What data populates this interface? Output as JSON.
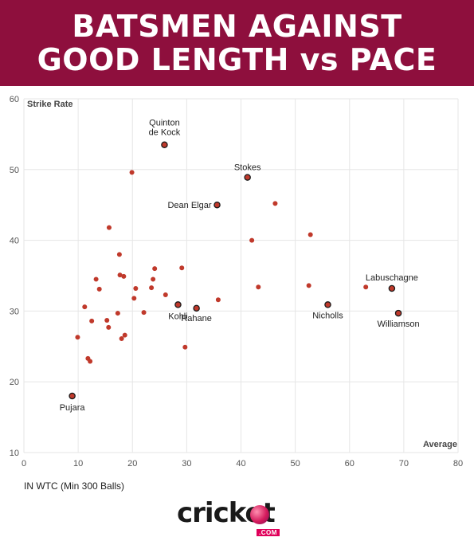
{
  "header": {
    "title_line1": "BATSMEN AGAINST",
    "title_line2": "GOOD LENGTH vs PACE"
  },
  "footnote": "IN WTC (Min 300 Balls)",
  "logo": {
    "word": "cricket",
    "dotcom": ".COM"
  },
  "colors": {
    "banner": "#8e0f3d",
    "point": "#c0392b",
    "point_highlight_stroke": "#1a1a1a",
    "grid": "#e6e6e6"
  },
  "chart_data": {
    "type": "scatter",
    "xlabel": "Average",
    "ylabel": "Strike Rate",
    "xlim": [
      0,
      80
    ],
    "ylim": [
      10,
      60
    ],
    "xticks": [
      0,
      10,
      20,
      30,
      40,
      50,
      60,
      70,
      80
    ],
    "yticks": [
      10,
      20,
      30,
      40,
      50,
      60
    ],
    "grid": true,
    "points": [
      {
        "x": 8.9,
        "y": 18.0,
        "label": "Pujara",
        "highlight": true
      },
      {
        "x": 25.9,
        "y": 53.5,
        "label": "Quinton de Kock",
        "highlight": true
      },
      {
        "x": 41.2,
        "y": 48.9,
        "label": "Stokes",
        "highlight": true
      },
      {
        "x": 35.6,
        "y": 45.0,
        "label": "Dean Elgar",
        "highlight": true
      },
      {
        "x": 28.4,
        "y": 30.9,
        "label": "Kohli",
        "highlight": true
      },
      {
        "x": 31.8,
        "y": 30.4,
        "label": "Rahane",
        "highlight": true
      },
      {
        "x": 56.0,
        "y": 30.9,
        "label": "Nicholls",
        "highlight": true
      },
      {
        "x": 67.8,
        "y": 33.2,
        "label": "Labuschagne",
        "highlight": true
      },
      {
        "x": 69.0,
        "y": 29.7,
        "label": "Williamson",
        "highlight": true
      },
      {
        "x": 19.9,
        "y": 49.6
      },
      {
        "x": 15.7,
        "y": 41.8
      },
      {
        "x": 17.6,
        "y": 38.0
      },
      {
        "x": 24.1,
        "y": 36.0
      },
      {
        "x": 29.1,
        "y": 36.1
      },
      {
        "x": 13.3,
        "y": 34.5
      },
      {
        "x": 17.7,
        "y": 35.1
      },
      {
        "x": 18.4,
        "y": 34.9
      },
      {
        "x": 23.8,
        "y": 34.5
      },
      {
        "x": 13.9,
        "y": 33.1
      },
      {
        "x": 20.6,
        "y": 33.2
      },
      {
        "x": 23.5,
        "y": 33.3
      },
      {
        "x": 26.1,
        "y": 32.3
      },
      {
        "x": 20.3,
        "y": 31.8
      },
      {
        "x": 11.2,
        "y": 30.6
      },
      {
        "x": 17.3,
        "y": 29.7
      },
      {
        "x": 22.1,
        "y": 29.8
      },
      {
        "x": 12.5,
        "y": 28.6
      },
      {
        "x": 15.3,
        "y": 28.7
      },
      {
        "x": 15.6,
        "y": 27.7
      },
      {
        "x": 18.6,
        "y": 26.6
      },
      {
        "x": 18.0,
        "y": 26.1
      },
      {
        "x": 9.9,
        "y": 26.3
      },
      {
        "x": 11.8,
        "y": 23.3
      },
      {
        "x": 12.2,
        "y": 22.9
      },
      {
        "x": 29.7,
        "y": 24.9
      },
      {
        "x": 35.8,
        "y": 31.6
      },
      {
        "x": 42.0,
        "y": 40.0
      },
      {
        "x": 46.3,
        "y": 45.2
      },
      {
        "x": 43.2,
        "y": 33.4
      },
      {
        "x": 52.8,
        "y": 40.8
      },
      {
        "x": 52.5,
        "y": 33.6
      },
      {
        "x": 63.0,
        "y": 33.4
      }
    ]
  }
}
